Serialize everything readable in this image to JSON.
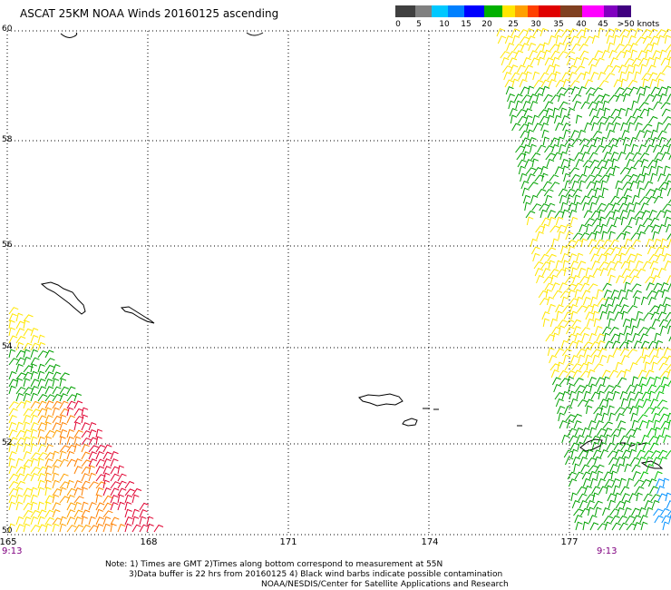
{
  "header": {
    "title": "ASCAT 25KM NOAA Winds 20160125 ascending"
  },
  "legend": {
    "labels": [
      "0",
      "5",
      "10",
      "15",
      "20",
      "25",
      "30",
      "35",
      "40",
      "45",
      ">50 knots"
    ],
    "colors": [
      "#404040",
      "#808080",
      "#00c8ff",
      "#0080ff",
      "#0000ff",
      "#00b000",
      "#ffe600",
      "#ffa000",
      "#ff4000",
      "#e00000",
      "#804020",
      "#ff00ff",
      "#8000c0",
      "#400080"
    ]
  },
  "map": {
    "lat_labels": [
      "60",
      "58",
      "56",
      "54",
      "52",
      "50"
    ],
    "lon_labels": [
      "165",
      "168",
      "171",
      "174",
      "177"
    ],
    "times": {
      "left": "9:13",
      "right": "9:13"
    }
  },
  "notes": {
    "line1": "Note: 1) Times are GMT 2)Times along bottom correspond to measurement at 55N",
    "line2": "3)Data buffer is 22 hrs from 20160125 4) Black wind barbs indicate possible contamination",
    "line3": "NOAA/NESDIS/Center for Satellite Applications and Research"
  }
}
